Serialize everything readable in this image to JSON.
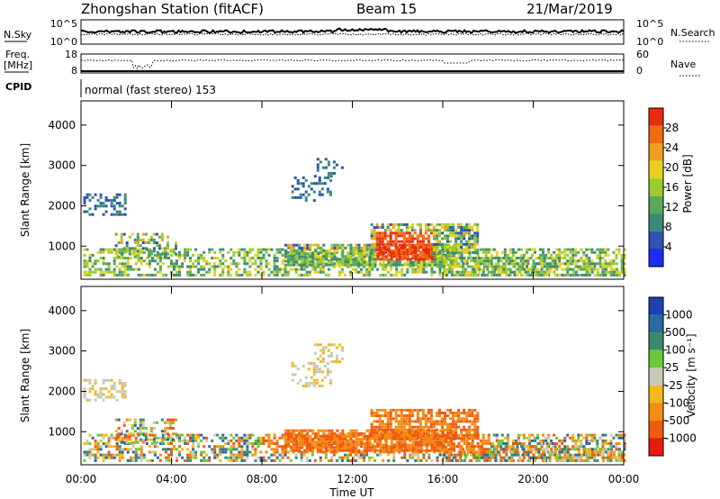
{
  "header": {
    "title": "Zhongshan Station (fitACF)",
    "beam": "Beam 15",
    "date": "21/Mar/2019"
  },
  "top_panels": {
    "nsky_label": "N.Sky",
    "nsky_ticks": [
      "10^5",
      "10^0"
    ],
    "nsearch_label": "N.Search",
    "nsearch_ticks": [
      "10^5",
      "10^0"
    ],
    "freq_label": "Freq.",
    "freq_unit": "[MHz]",
    "freq_ticks": [
      "18",
      "8"
    ],
    "nave_label": "Nave",
    "nave_ticks": [
      "60",
      "0"
    ],
    "cpid_label": "CPID",
    "cpid_text": "normal (fast stereo) 153"
  },
  "chart_data": [
    {
      "type": "heatmap",
      "name": "power",
      "ylabel": "Slant Range [km]",
      "yticks": [
        "1000",
        "2000",
        "3000",
        "4000"
      ],
      "ylim": [
        180,
        4600
      ],
      "xlim": [
        0,
        24
      ],
      "colorbar_label": "Power [dB]",
      "colorbar_ticks": [
        "4",
        "8",
        "12",
        "16",
        "20",
        "24",
        "28"
      ],
      "colorbar_colors": [
        "#1c2cf0",
        "#2a55b0",
        "#3b8a78",
        "#5aa85a",
        "#9ccc2c",
        "#e8d020",
        "#f0a020",
        "#f06a10",
        "#e82a10"
      ]
    },
    {
      "type": "heatmap",
      "name": "velocity",
      "ylabel": "Slant Range [km]",
      "yticks": [
        "1000",
        "2000",
        "3000",
        "4000"
      ],
      "ylim": [
        180,
        4600
      ],
      "xlim": [
        0,
        24
      ],
      "colorbar_label": "Velocity [m s⁻¹]",
      "colorbar_ticks": [
        "1000",
        "500",
        "100",
        "25",
        "-25",
        "-100",
        "-500",
        "-1000"
      ],
      "colorbar_colors": [
        "#1e3fb0",
        "#2a6aa0",
        "#3b8a6e",
        "#6cc838",
        "#c8c8b8",
        "#f4b81a",
        "#f28c14",
        "#f05a10",
        "#e81a10"
      ]
    }
  ],
  "x_axis": {
    "ticks": [
      "00:00",
      "04:00",
      "08:00",
      "12:00",
      "16:00",
      "20:00",
      "00:00"
    ],
    "label": "Time UT"
  }
}
